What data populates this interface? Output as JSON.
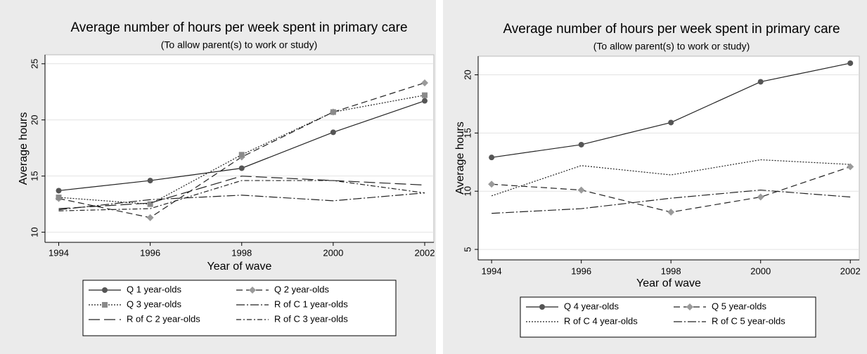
{
  "chart_data": [
    {
      "type": "line",
      "title": "Average number of hours per week spent in primary care",
      "subtitle": "(To allow parent(s) to work or study)",
      "x_label": "Year of wave",
      "y_label": "Average hours",
      "x": [
        1994,
        1996,
        1998,
        2000,
        2002
      ],
      "xlim": [
        1993.7,
        2002.2
      ],
      "xticks": [
        1994,
        1996,
        1998,
        2000,
        2002
      ],
      "ylim": [
        9.1,
        25.8
      ],
      "yticks": [
        10,
        15,
        20,
        25
      ],
      "grid": true,
      "series": [
        {
          "name": "Q 1 year-olds",
          "color": "#222222",
          "marker_color": "#555555",
          "marker": "circle",
          "style": "solid",
          "values": [
            13.7,
            14.6,
            15.7,
            18.9,
            21.7
          ]
        },
        {
          "name": "Q 2 year-olds",
          "color": "#222222",
          "marker_color": "#9a9a9a",
          "marker": "diamond",
          "style": "dashed",
          "values": [
            13.0,
            11.3,
            16.7,
            20.7,
            23.3
          ]
        },
        {
          "name": "Q 3 year-olds",
          "color": "#222222",
          "marker_color": "#8a8a8a",
          "marker": "square",
          "style": "dotted",
          "values": [
            13.1,
            12.5,
            16.9,
            20.7,
            22.2
          ]
        },
        {
          "name": "R of C 1 year-olds",
          "color": "#222222",
          "marker": null,
          "style": "dashdot",
          "values": [
            12.0,
            12.9,
            13.3,
            12.8,
            13.5
          ]
        },
        {
          "name": "R of C 2 year-olds",
          "color": "#222222",
          "marker": null,
          "style": "longdash",
          "values": [
            12.1,
            12.6,
            15.0,
            14.6,
            14.2
          ]
        },
        {
          "name": "R of C 3 year-olds",
          "color": "#222222",
          "marker": null,
          "style": "dashdot2",
          "values": [
            11.9,
            12.1,
            14.6,
            14.6,
            13.5
          ]
        }
      ]
    },
    {
      "type": "line",
      "title": "Average number of hours per week spent in primary care",
      "subtitle": "(To allow parent(s) to work or study)",
      "x_label": "Year of wave",
      "y_label": "Average hours",
      "x": [
        1994,
        1996,
        1998,
        2000,
        2002
      ],
      "xlim": [
        1993.7,
        2002.2
      ],
      "xticks": [
        1994,
        1996,
        1998,
        2000,
        2002
      ],
      "ylim": [
        4.1,
        21.6
      ],
      "yticks": [
        5,
        10,
        15,
        20
      ],
      "grid": true,
      "series": [
        {
          "name": "Q 4 year-olds",
          "color": "#222222",
          "marker_color": "#555555",
          "marker": "circle",
          "style": "solid",
          "values": [
            12.9,
            14.0,
            15.9,
            19.4,
            21.0
          ]
        },
        {
          "name": "Q 5 year-olds",
          "color": "#222222",
          "marker_color": "#9a9a9a",
          "marker": "diamond",
          "style": "dashed",
          "values": [
            10.6,
            10.1,
            8.2,
            9.5,
            12.1
          ]
        },
        {
          "name": "R of C 4 year-olds",
          "color": "#222222",
          "marker": null,
          "style": "dotted",
          "values": [
            9.6,
            12.2,
            11.4,
            12.7,
            12.3
          ]
        },
        {
          "name": "R of C 5 year-olds",
          "color": "#222222",
          "marker": null,
          "style": "dashdot",
          "values": [
            8.1,
            8.5,
            9.4,
            10.1,
            9.5
          ]
        }
      ]
    }
  ]
}
